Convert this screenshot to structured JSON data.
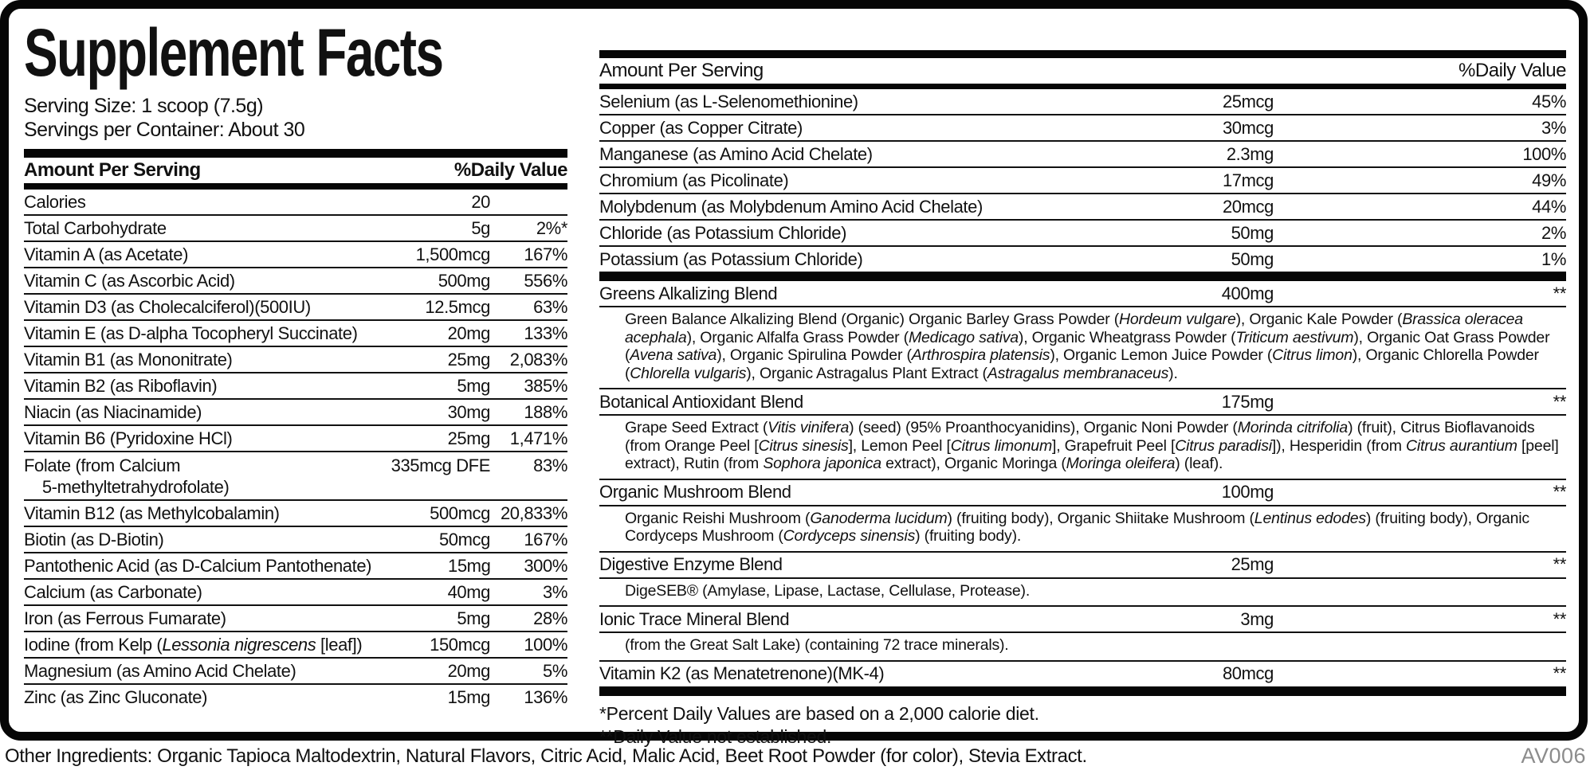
{
  "title": "Supplement Facts",
  "serving": {
    "size": "Serving Size: 1 scoop (7.5g)",
    "per_container": "Servings per Container: About 30"
  },
  "left_table": {
    "header": {
      "amount": "Amount Per Serving",
      "dv": "%Daily Value"
    },
    "rows": [
      {
        "name": "Calories",
        "amount": "20",
        "dv": ""
      },
      {
        "name": "Total Carbohydrate",
        "amount": "5g",
        "dv": "2%*"
      },
      {
        "name": "Vitamin A (as Acetate)",
        "amount": "1,500mcg",
        "dv": "167%"
      },
      {
        "name": "Vitamin C (as Ascorbic Acid)",
        "amount": "500mg",
        "dv": "556%"
      },
      {
        "name": "Vitamin D3 (as Cholecalciferol)(500IU)",
        "amount": "12.5mcg",
        "dv": "63%"
      },
      {
        "name": "Vitamin E (as D-alpha Tocopheryl Succinate)",
        "amount": "20mg",
        "dv": "133%"
      },
      {
        "name": "Vitamin B1 (as Mononitrate)",
        "amount": "25mg",
        "dv": "2,083%"
      },
      {
        "name": "Vitamin B2 (as Riboflavin)",
        "amount": "5mg",
        "dv": "385%"
      },
      {
        "name": "Niacin (as Niacinamide)",
        "amount": "30mg",
        "dv": "188%"
      },
      {
        "name": "Vitamin B6 (Pyridoxine HCl)",
        "amount": "25mg",
        "dv": "1,471%"
      },
      {
        "name": [
          {
            "t": "Folate (from Calcium"
          },
          {
            "br": true
          },
          {
            "t": "    5-methyltetrahydrofolate)"
          }
        ],
        "amount": "335mcg DFE",
        "dv": "83%",
        "tall": true
      },
      {
        "name": "Vitamin B12 (as Methylcobalamin)",
        "amount": "500mcg",
        "dv": "20,833%"
      },
      {
        "name": "Biotin (as D-Biotin)",
        "amount": "50mcg",
        "dv": "167%"
      },
      {
        "name": "Pantothenic Acid (as D-Calcium Pantothenate)",
        "amount": "15mg",
        "dv": "300%"
      },
      {
        "name": "Calcium (as Carbonate)",
        "amount": "40mg",
        "dv": "3%"
      },
      {
        "name": "Iron (as Ferrous Fumarate)",
        "amount": "5mg",
        "dv": "28%"
      },
      {
        "name": [
          {
            "t": "Iodine (from Kelp ("
          },
          {
            "t": "Lessonia nigrescens",
            "i": true
          },
          {
            "t": " [leaf])"
          }
        ],
        "amount": "150mcg",
        "dv": "100%"
      },
      {
        "name": "Magnesium (as Amino Acid Chelate)",
        "amount": "20mg",
        "dv": "5%"
      },
      {
        "name": "Zinc (as Zinc Gluconate)",
        "amount": "15mg",
        "dv": "136%",
        "last": true
      }
    ]
  },
  "right_table": {
    "header": {
      "amount": "Amount Per Serving",
      "dv": "%Daily Value"
    },
    "rows": [
      {
        "name": "Selenium (as L-Selenomethionine)",
        "amount": "25mcg",
        "dv": "45%"
      },
      {
        "name": "Copper (as Copper Citrate)",
        "amount": "30mcg",
        "dv": "3%"
      },
      {
        "name": "Manganese (as Amino Acid Chelate)",
        "amount": "2.3mg",
        "dv": "100%"
      },
      {
        "name": "Chromium (as Picolinate)",
        "amount": "17mcg",
        "dv": "49%"
      },
      {
        "name": "Molybdenum (as Molybdenum Amino Acid Chelate)",
        "amount": "20mcg",
        "dv": "44%"
      },
      {
        "name": "Chloride (as Potassium Chloride)",
        "amount": "50mg",
        "dv": "2%"
      },
      {
        "name": "Potassium (as Potassium Chloride)",
        "amount": "50mg",
        "dv": "1%",
        "last": true
      }
    ],
    "blends": [
      {
        "name": "Greens Alkalizing Blend",
        "amount": "400mg",
        "dv": "**",
        "desc": [
          {
            "t": "Green Balance Alkalizing Blend (Organic) Organic Barley Grass Powder ("
          },
          {
            "t": "Hordeum vulgare",
            "i": true
          },
          {
            "t": "), Organic Kale Powder ("
          },
          {
            "t": "Brassica oleracea acephala",
            "i": true
          },
          {
            "t": "), Organic Alfalfa Grass Powder ("
          },
          {
            "t": "Medicago sativa",
            "i": true
          },
          {
            "t": "), Organic Wheatgrass Powder ("
          },
          {
            "t": "Triticum aestivum",
            "i": true
          },
          {
            "t": "), Organic Oat Grass Powder ("
          },
          {
            "t": "Avena sativa",
            "i": true
          },
          {
            "t": "), Organic Spirulina Powder ("
          },
          {
            "t": "Arthrospira platensis",
            "i": true
          },
          {
            "t": "), Organic Lemon Juice Powder ("
          },
          {
            "t": "Citrus limon",
            "i": true
          },
          {
            "t": "), Organic Chlorella Powder ("
          },
          {
            "t": "Chlorella vulgaris",
            "i": true
          },
          {
            "t": "), Organic Astragalus Plant Extract ("
          },
          {
            "t": "Astragalus membranaceus",
            "i": true
          },
          {
            "t": ")."
          }
        ]
      },
      {
        "name": "Botanical Antioxidant Blend",
        "amount": "175mg",
        "dv": "**",
        "desc": [
          {
            "t": "Grape Seed Extract ("
          },
          {
            "t": "Vitis vinifera",
            "i": true
          },
          {
            "t": ") (seed) (95% Proanthocyanidins), Organic Noni Powder ("
          },
          {
            "t": "Morinda citrifolia",
            "i": true
          },
          {
            "t": ") (fruit), Citrus Bioflavanoids (from Orange Peel ["
          },
          {
            "t": "Citrus sinesis",
            "i": true
          },
          {
            "t": "], Lemon Peel ["
          },
          {
            "t": "Citrus limonum",
            "i": true
          },
          {
            "t": "], Grapefruit Peel ["
          },
          {
            "t": "Citrus paradisi",
            "i": true
          },
          {
            "t": "]), Hesperidin (from "
          },
          {
            "t": "Citrus aurantium",
            "i": true
          },
          {
            "t": " [peel] extract), Rutin (from "
          },
          {
            "t": "Sophora japonica",
            "i": true
          },
          {
            "t": " extract), Organic Moringa ("
          },
          {
            "t": "Moringa oleifera",
            "i": true
          },
          {
            "t": ") (leaf)."
          }
        ]
      },
      {
        "name": "Organic Mushroom Blend",
        "amount": "100mg",
        "dv": "**",
        "desc": [
          {
            "t": "Organic Reishi Mushroom ("
          },
          {
            "t": "Ganoderma lucidum",
            "i": true
          },
          {
            "t": ") (fruiting body), Organic Shiitake Mushroom ("
          },
          {
            "t": "Lentinus edodes",
            "i": true
          },
          {
            "t": ") (fruiting body), Organic Cordyceps Mushroom ("
          },
          {
            "t": "Cordyceps sinensis",
            "i": true
          },
          {
            "t": ") (fruiting body)."
          }
        ]
      },
      {
        "name": "Digestive Enzyme Blend",
        "amount": "25mg",
        "dv": "**",
        "desc": [
          {
            "t": "DigeSEB® (Amylase, Lipase, Lactase, Cellulase, Protease)."
          }
        ]
      },
      {
        "name": "Ionic Trace Mineral Blend",
        "amount": "3mg",
        "dv": "**",
        "desc": [
          {
            "t": "(from the Great Salt Lake) (containing 72 trace minerals)."
          }
        ]
      },
      {
        "name": "Vitamin K2 (as Menatetrenone)(MK-4)",
        "amount": "80mcg",
        "dv": "**",
        "last": true
      }
    ],
    "footnotes": [
      "*Percent Daily Values are based on a 2,000 calorie diet.",
      "**Daily Value not established."
    ]
  },
  "footer": {
    "other_ingredients": "Other Ingredients: Organic Tapioca Maltodextrin, Natural Flavors, Citric Acid, Malic Acid, Beet Root Powder (for color), Stevia Extract.",
    "code": "AV006"
  },
  "colors": {
    "text": "#111111",
    "rule": "#111111",
    "bar": "#060606",
    "muted": "#8c8c8c"
  }
}
